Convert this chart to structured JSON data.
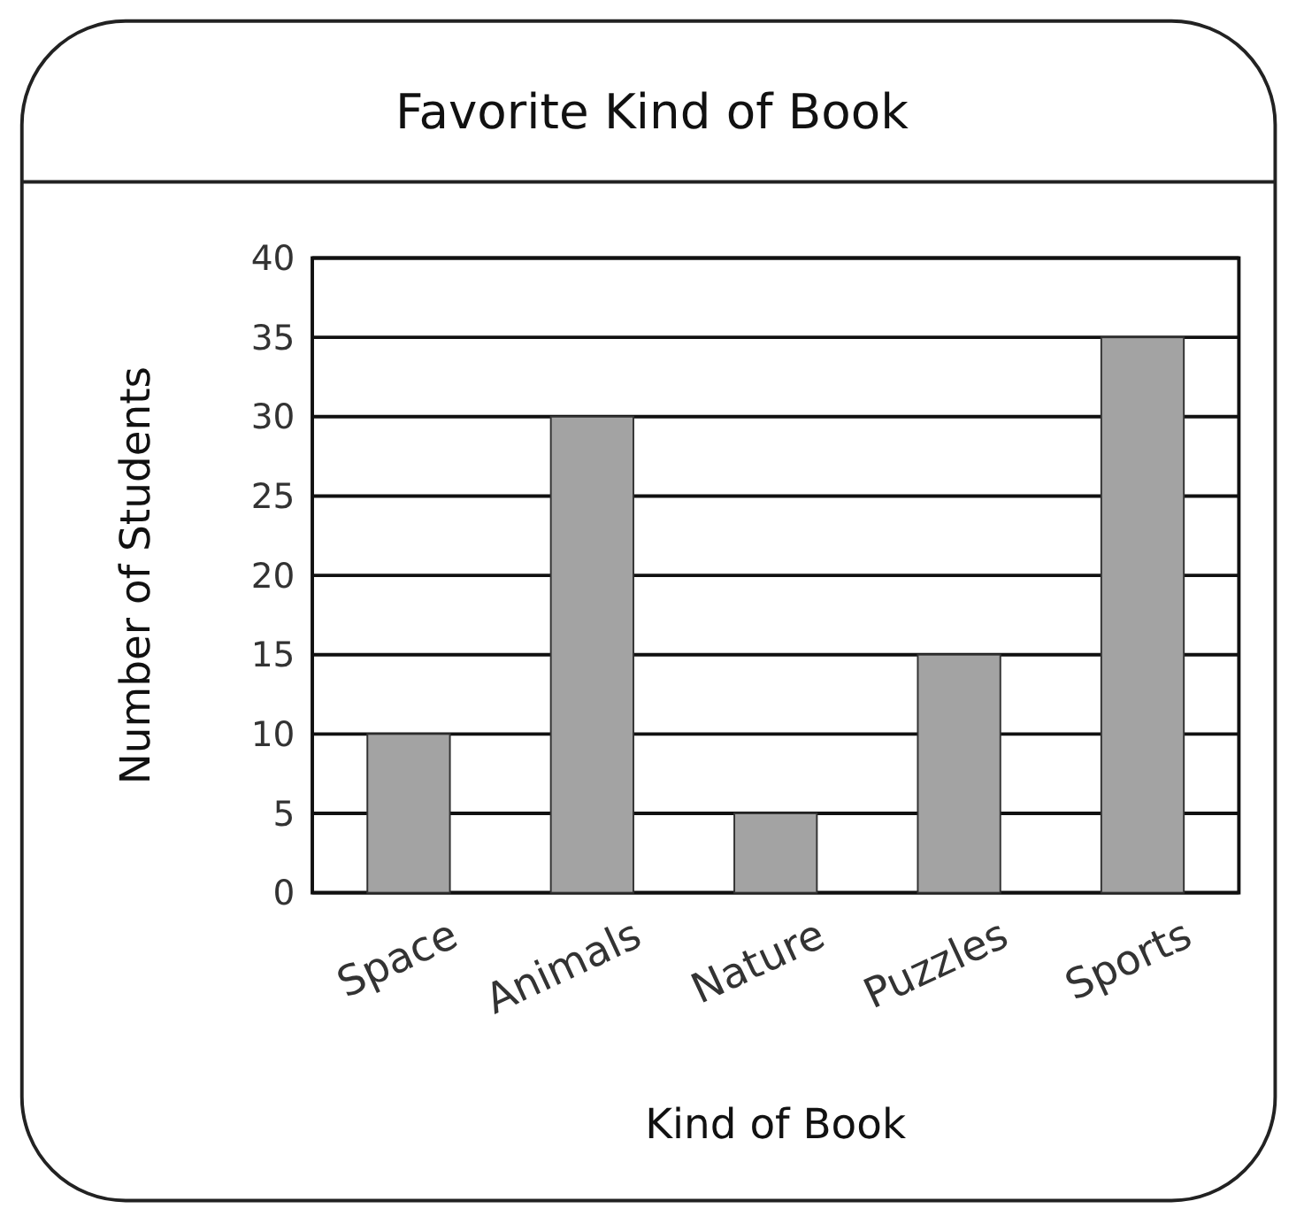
{
  "chart_data": {
    "type": "bar",
    "title": "Favorite Kind of Book",
    "xlabel": "Kind of Book",
    "ylabel": "Number of Students",
    "categories": [
      "Space",
      "Animals",
      "Nature",
      "Puzzles",
      "Sports"
    ],
    "values": [
      10,
      30,
      5,
      15,
      35
    ],
    "color": "#a3a3a3",
    "ylim": [
      0,
      40
    ],
    "yticks": [
      0,
      5,
      10,
      15,
      20,
      25,
      30,
      35,
      40
    ],
    "grid": "y"
  }
}
